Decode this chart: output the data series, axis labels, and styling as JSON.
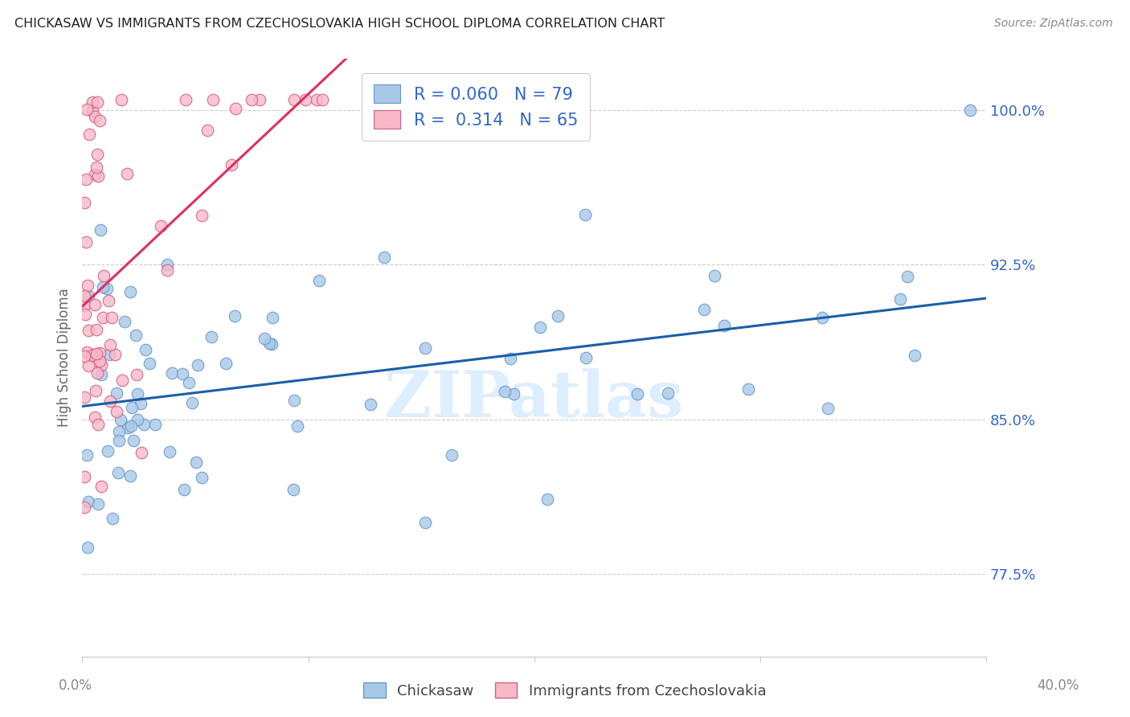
{
  "title": "CHICKASAW VS IMMIGRANTS FROM CZECHOSLOVAKIA HIGH SCHOOL DIPLOMA CORRELATION CHART",
  "source": "Source: ZipAtlas.com",
  "ylabel": "High School Diploma",
  "ytick_labels": [
    "77.5%",
    "85.0%",
    "92.5%",
    "100.0%"
  ],
  "ytick_values": [
    0.775,
    0.85,
    0.925,
    1.0
  ],
  "xmin": 0.0,
  "xmax": 0.4,
  "ymin": 0.735,
  "ymax": 1.025,
  "blue_color": "#a8c8e8",
  "pink_color": "#f8b8c8",
  "blue_line_color": "#1a5fa8",
  "pink_line_color": "#e03060",
  "blue_edge_color": "#6898c8",
  "pink_edge_color": "#d06080",
  "watermark": "ZIPatlas",
  "legend_text_color": "#3366cc",
  "watermark_color": "#ddeeff"
}
